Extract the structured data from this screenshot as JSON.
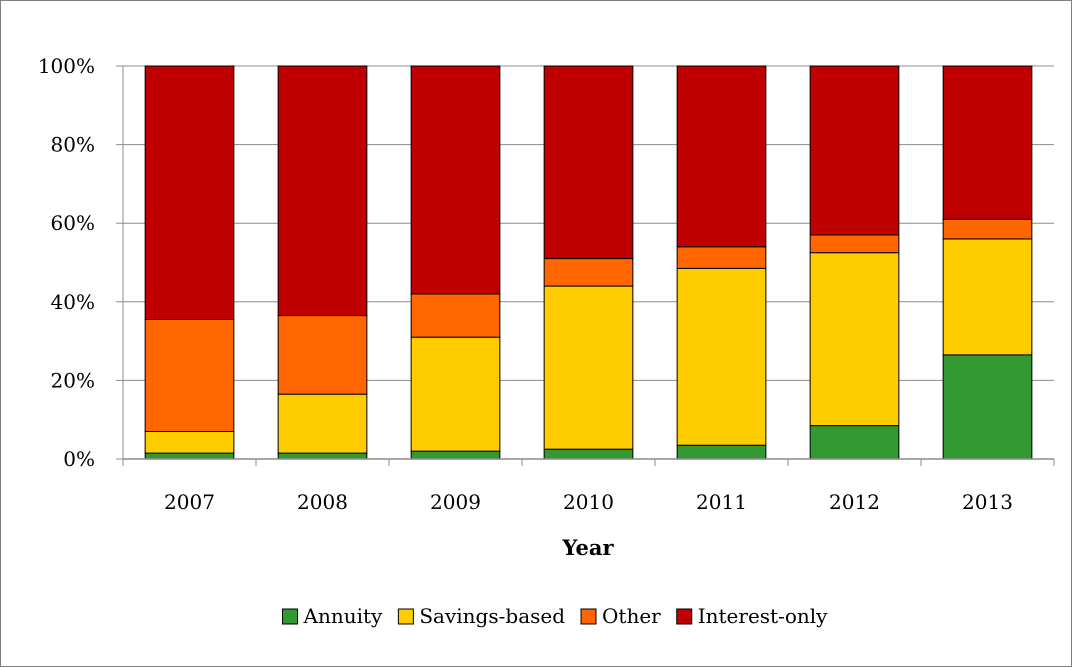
{
  "chart_data": {
    "type": "bar",
    "stacked": "percent",
    "categories": [
      "2007",
      "2008",
      "2009",
      "2010",
      "2011",
      "2012",
      "2013"
    ],
    "series": [
      {
        "name": "Annuity",
        "color": "#339933",
        "values": [
          1.5,
          1.5,
          2.0,
          2.5,
          3.5,
          8.5,
          26.5
        ]
      },
      {
        "name": "Savings-based",
        "color": "#ffcc00",
        "values": [
          5.5,
          15.0,
          29.0,
          41.5,
          45.0,
          44.0,
          29.5
        ]
      },
      {
        "name": "Other",
        "color": "#ff6600",
        "values": [
          28.5,
          20.0,
          11.0,
          7.0,
          5.5,
          4.5,
          5.0
        ]
      },
      {
        "name": "Interest-only",
        "color": "#c00000",
        "values": [
          64.5,
          63.5,
          58.0,
          49.0,
          46.0,
          43.0,
          39.0
        ]
      }
    ],
    "yticks": [
      "0%",
      "20%",
      "40%",
      "60%",
      "80%",
      "100%"
    ],
    "ylim": [
      0,
      100
    ],
    "xlabel": "Year",
    "ylabel": "",
    "grid": true,
    "legend": "bottom"
  }
}
